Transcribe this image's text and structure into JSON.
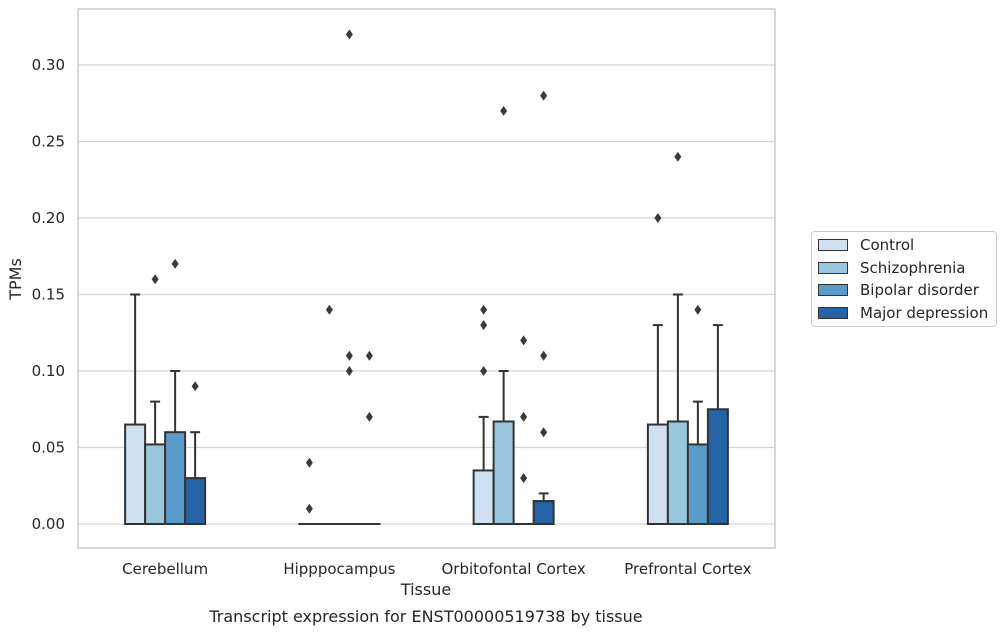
{
  "chart_data": {
    "type": "bar",
    "title": "Transcript expression for ENST00000519738 by tissue",
    "xlabel": "Tissue",
    "ylabel": "TPMs",
    "ylim": [
      -0.016,
      0.337
    ],
    "yticks": [
      "0.00",
      "0.05",
      "0.10",
      "0.15",
      "0.20",
      "0.25",
      "0.30"
    ],
    "grid": true,
    "legend_position": "right",
    "categories": [
      "Cerebellum",
      "Hipppocampus",
      "Orbitofontal Cortex",
      "Prefrontal Cortex"
    ],
    "series": [
      {
        "name": "Control",
        "color": "#cfe1f0",
        "values": [
          0.065,
          0.0,
          0.035,
          0.065
        ],
        "whisker_high": [
          0.15,
          0.0,
          0.07,
          0.13
        ],
        "outliers": [
          [],
          [
            0.01,
            0.04
          ],
          [
            0.1,
            0.13,
            0.14
          ],
          [
            0.2
          ]
        ]
      },
      {
        "name": "Schizophrenia",
        "color": "#9ac7de",
        "values": [
          0.052,
          0.0,
          0.067,
          0.067
        ],
        "whisker_high": [
          0.08,
          0.0,
          0.1,
          0.15
        ],
        "outliers": [
          [
            0.16
          ],
          [
            0.14
          ],
          [
            0.27
          ],
          [
            0.24
          ]
        ]
      },
      {
        "name": "Bipolar disorder",
        "color": "#5a9cc9",
        "values": [
          0.06,
          0.0,
          0.0,
          0.052
        ],
        "whisker_high": [
          0.1,
          0.0,
          0.0,
          0.08
        ],
        "outliers": [
          [
            0.17
          ],
          [
            0.1,
            0.11,
            0.32
          ],
          [
            0.03,
            0.07,
            0.12
          ],
          [
            0.14
          ]
        ]
      },
      {
        "name": "Major depression",
        "color": "#2563a6",
        "values": [
          0.03,
          0.0,
          0.015,
          0.075
        ],
        "whisker_high": [
          0.06,
          0.0,
          0.02,
          0.13
        ],
        "outliers": [
          [
            0.09
          ],
          [
            0.07,
            0.11
          ],
          [
            0.06,
            0.11,
            0.28
          ],
          []
        ]
      }
    ]
  }
}
